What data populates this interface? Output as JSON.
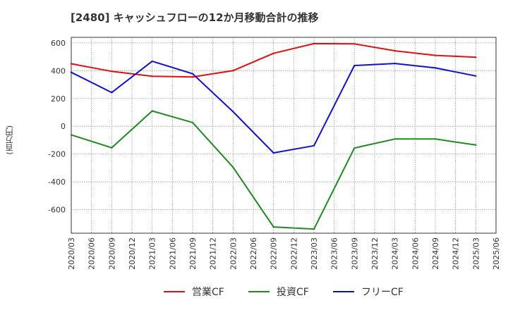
{
  "chart_data": {
    "type": "line",
    "title": "[2480]  キャッシュフローの12か月移動合計の推移",
    "xlabel": "",
    "ylabel": "(百万円)",
    "ylim": [
      -770,
      640
    ],
    "yticks": [
      600,
      400,
      200,
      0,
      -200,
      -400,
      -600
    ],
    "ytick_labels": [
      "600",
      "400",
      "200",
      "0",
      "-200",
      "-400",
      "-600"
    ],
    "categories": [
      "2020/03",
      "2020/06",
      "2020/09",
      "2020/12",
      "2021/03",
      "2021/06",
      "2021/09",
      "2021/12",
      "2022/03",
      "2022/06",
      "2022/09",
      "2022/12",
      "2023/03",
      "2023/06",
      "2023/09",
      "2023/12",
      "2024/03",
      "2024/06",
      "2024/09",
      "2024/12",
      "2025/03",
      "2025/06"
    ],
    "grid": true,
    "legend": "bottom-center",
    "series": [
      {
        "name": "営業CF",
        "color": "#dd1111",
        "values": [
          450,
          null,
          395,
          null,
          360,
          null,
          355,
          null,
          400,
          null,
          525,
          null,
          595,
          null,
          593,
          null,
          543,
          null,
          510,
          null,
          497,
          null
        ]
      },
      {
        "name": "投資CF",
        "color": "#228822",
        "values": [
          -62,
          null,
          -155,
          null,
          110,
          null,
          27,
          null,
          -295,
          null,
          -725,
          null,
          -740,
          null,
          -157,
          null,
          -92,
          null,
          -92,
          null,
          -135,
          null
        ]
      },
      {
        "name": "フリーCF",
        "color": "#1111cc",
        "values": [
          388,
          null,
          243,
          null,
          468,
          null,
          378,
          null,
          105,
          null,
          -192,
          null,
          -140,
          null,
          437,
          null,
          452,
          null,
          420,
          null,
          362,
          null
        ]
      }
    ]
  }
}
